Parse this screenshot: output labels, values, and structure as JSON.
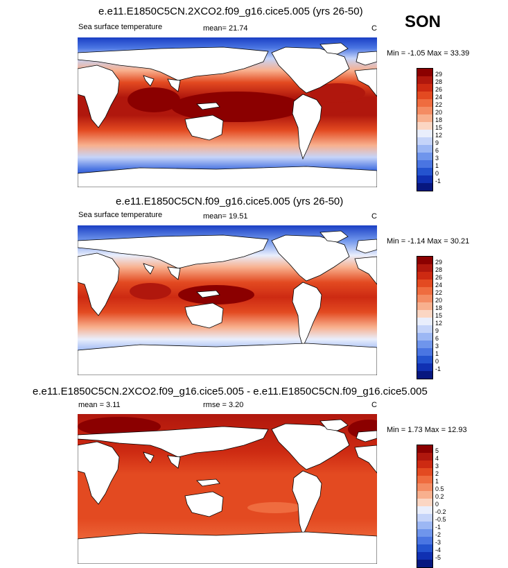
{
  "season": "SON",
  "panels": [
    {
      "title": "e.e11.E1850C5CN.2XCO2.f09_g16.cice5.005 (yrs 26-50)",
      "variable": "Sea surface temperature",
      "stat1": "mean=  21.74",
      "stat2": "",
      "units": "C",
      "minmax": "Min =  -1.05 Max =  33.39",
      "levels": [
        "29",
        "28",
        "26",
        "24",
        "22",
        "20",
        "18",
        "15",
        "12",
        "9",
        "6",
        "3",
        "1",
        "0",
        "-1"
      ],
      "colors": [
        "#8b0000",
        "#b0170d",
        "#cd2a12",
        "#e34a21",
        "#ef6c3f",
        "#f48c63",
        "#f8b08e",
        "#fbd6c3",
        "#e9eefc",
        "#c5d4f9",
        "#9cb7f4",
        "#6f95ec",
        "#4a75e2",
        "#2453cf",
        "#1030b2",
        "#07177f"
      ]
    },
    {
      "title": "e.e11.E1850C5CN.f09_g16.cice5.005 (yrs 26-50)",
      "variable": "Sea surface temperature",
      "stat1": "mean=  19.51",
      "stat2": "",
      "units": "C",
      "minmax": "Min =  -1.14 Max =  30.21",
      "levels": [
        "29",
        "28",
        "26",
        "24",
        "22",
        "20",
        "18",
        "15",
        "12",
        "9",
        "6",
        "3",
        "1",
        "0",
        "-1"
      ],
      "colors": [
        "#8b0000",
        "#b0170d",
        "#cd2a12",
        "#e34a21",
        "#ef6c3f",
        "#f48c63",
        "#f8b08e",
        "#fbd6c3",
        "#e9eefc",
        "#c5d4f9",
        "#9cb7f4",
        "#6f95ec",
        "#4a75e2",
        "#2453cf",
        "#1030b2",
        "#07177f"
      ]
    },
    {
      "title": "e.e11.E1850C5CN.2XCO2.f09_g16.cice5.005 - e.e11.E1850C5CN.f09_g16.cice5.005",
      "variable": "",
      "stat1": "mean =   3.11",
      "stat2": "rmse =   3.20",
      "units": "C",
      "minmax": "Min =   1.73 Max =  12.93",
      "levels": [
        "5",
        "4",
        "3",
        "2",
        "1",
        "0.5",
        "0.2",
        "0",
        "-0.2",
        "-0.5",
        "-1",
        "-2",
        "-3",
        "-4",
        "-5"
      ],
      "colors": [
        "#8b0000",
        "#b0170d",
        "#cd2a12",
        "#e34a21",
        "#ef6c3f",
        "#f48c63",
        "#f8b08e",
        "#fbd6c3",
        "#e9eefc",
        "#c5d4f9",
        "#9cb7f4",
        "#6f95ec",
        "#4a75e2",
        "#2453cf",
        "#1030b2",
        "#07177f"
      ]
    }
  ],
  "chart_data": [
    {
      "type": "heatmap",
      "title": "e.e11.E1850C5CN.2XCO2.f09_g16.cice5.005 (yrs 26-50)",
      "variable": "Sea surface temperature",
      "units": "C",
      "mean": 21.74,
      "min": -1.05,
      "max": 33.39,
      "colorbar_levels": [
        29,
        28,
        26,
        24,
        22,
        20,
        18,
        15,
        12,
        9,
        6,
        3,
        1,
        0,
        -1
      ]
    },
    {
      "type": "heatmap",
      "title": "e.e11.E1850C5CN.f09_g16.cice5.005 (yrs 26-50)",
      "variable": "Sea surface temperature",
      "units": "C",
      "mean": 19.51,
      "min": -1.14,
      "max": 30.21,
      "colorbar_levels": [
        29,
        28,
        26,
        24,
        22,
        20,
        18,
        15,
        12,
        9,
        6,
        3,
        1,
        0,
        -1
      ]
    },
    {
      "type": "heatmap",
      "title": "e.e11.E1850C5CN.2XCO2.f09_g16.cice5.005 - e.e11.E1850C5CN.f09_g16.cice5.005",
      "units": "C",
      "mean": 3.11,
      "rmse": 3.2,
      "min": 1.73,
      "max": 12.93,
      "colorbar_levels": [
        5,
        4,
        3,
        2,
        1,
        0.5,
        0.2,
        0,
        -0.2,
        -0.5,
        -1,
        -2,
        -3,
        -4,
        -5
      ]
    }
  ]
}
